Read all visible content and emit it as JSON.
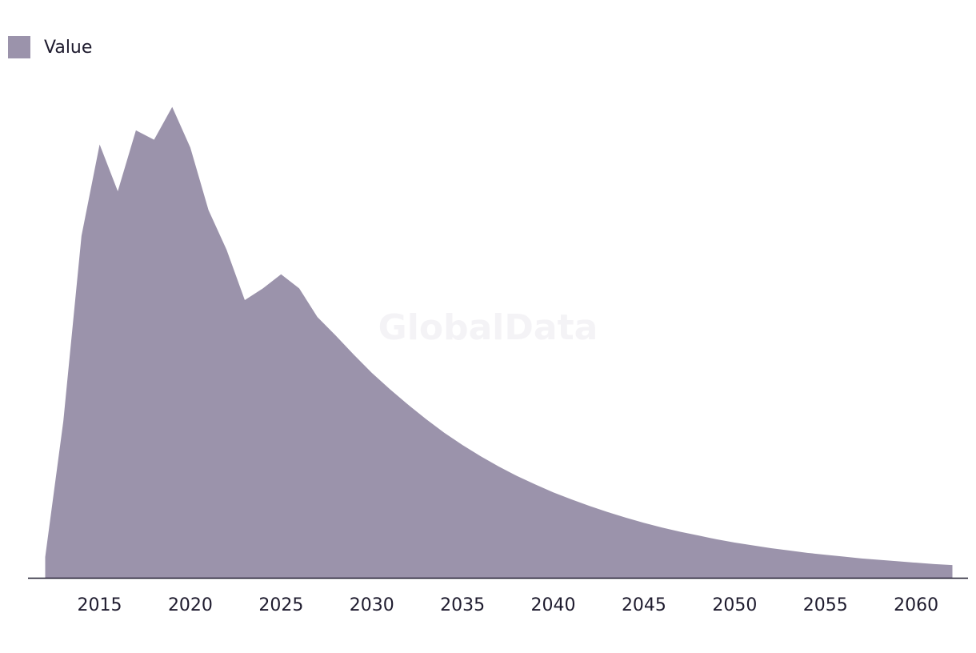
{
  "watermark": "GlobalData",
  "chart_data": {
    "type": "area",
    "title": "",
    "xlabel": "",
    "ylabel": "",
    "legend": {
      "position": "top-left",
      "entries": [
        "Value"
      ]
    },
    "grid": false,
    "xlim": [
      2012,
      2062
    ],
    "ylim": [
      0,
      100
    ],
    "x_ticks": [
      "2015",
      "2020",
      "2025",
      "2030",
      "2035",
      "2040",
      "2045",
      "2050",
      "2055",
      "2060"
    ],
    "series": [
      {
        "name": "Value",
        "color": "#9b93ab",
        "x": [
          2012,
          2013,
          2014,
          2015,
          2016,
          2017,
          2018,
          2019,
          2020,
          2021,
          2022,
          2023,
          2024,
          2025,
          2026,
          2027,
          2028,
          2029,
          2030,
          2031,
          2032,
          2033,
          2034,
          2035,
          2036,
          2037,
          2038,
          2039,
          2040,
          2041,
          2042,
          2043,
          2044,
          2045,
          2046,
          2047,
          2048,
          2049,
          2050,
          2051,
          2052,
          2053,
          2054,
          2055,
          2056,
          2057,
          2058,
          2059,
          2060,
          2061,
          2062
        ],
        "values": [
          4.5,
          33.5,
          73,
          92.5,
          82.5,
          95.5,
          93.5,
          100.5,
          91.8,
          78.5,
          70,
          59.3,
          61.8,
          64.8,
          61.8,
          55.7,
          51.8,
          47.7,
          43.8,
          40.3,
          37,
          33.9,
          31,
          28.4,
          26,
          23.8,
          21.8,
          20,
          18.3,
          16.8,
          15.4,
          14.1,
          12.9,
          11.8,
          10.8,
          9.9,
          9.1,
          8.3,
          7.6,
          7,
          6.4,
          5.9,
          5.4,
          5,
          4.6,
          4.2,
          3.9,
          3.6,
          3.3,
          3,
          2.8
        ]
      }
    ]
  }
}
